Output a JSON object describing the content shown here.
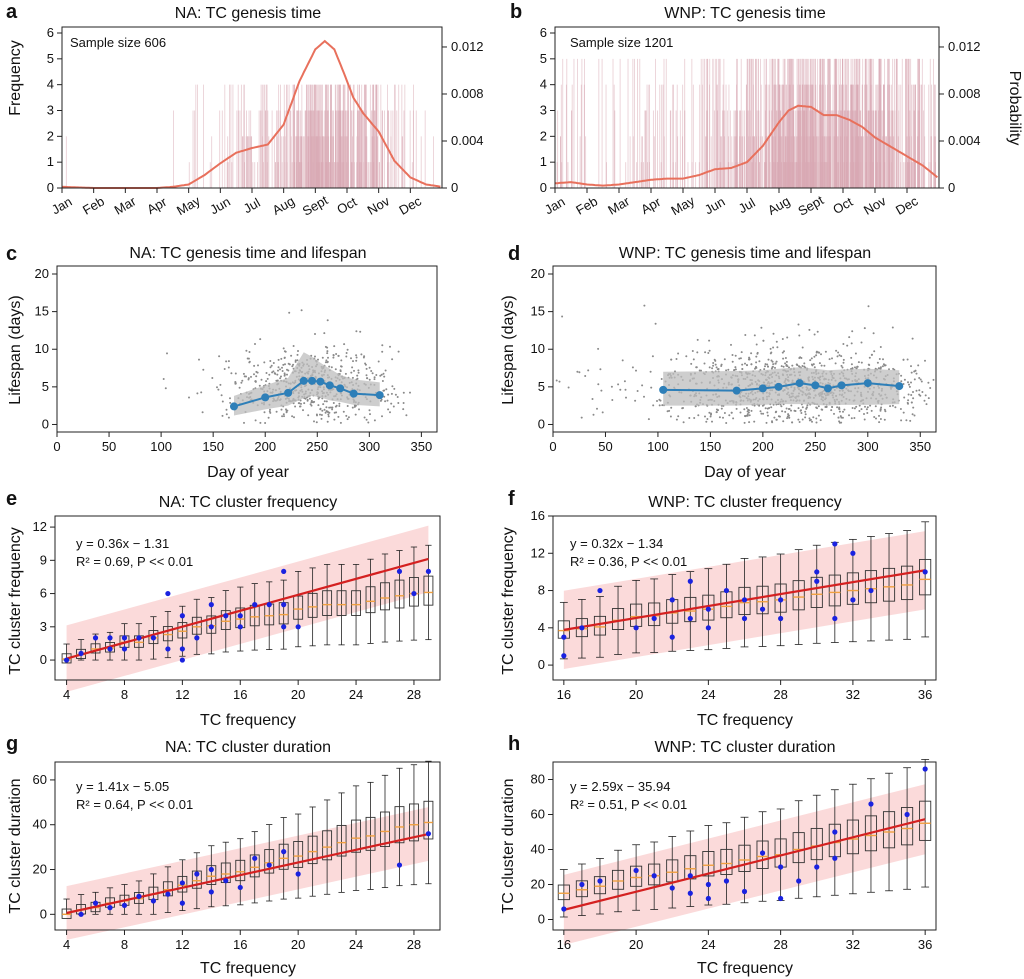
{
  "panels": {
    "a": {
      "label": "a",
      "title": "NA: TC genesis time",
      "ylabel": "Frequency",
      "note": "Sample size 606",
      "yticks": [
        "0",
        "1",
        "2",
        "3",
        "4",
        "5",
        "6"
      ],
      "y2ticks": [
        "0",
        "0.004",
        "0.008",
        "0.012"
      ],
      "xticks": [
        "Jan",
        "Feb",
        "Mar",
        "Apr",
        "May",
        "Jun",
        "Jul",
        "Aug",
        "Sept",
        "Oct",
        "Nov",
        "Dec"
      ]
    },
    "b": {
      "label": "b",
      "title": "WNP: TC genesis time",
      "ylabel2": "Probability",
      "note": "Sample size 1201",
      "yticks": [
        "0",
        "1",
        "2",
        "3",
        "4",
        "5",
        "6"
      ],
      "y2ticks": [
        "0",
        "0.004",
        "0.008",
        "0.012"
      ],
      "xticks": [
        "Jan",
        "Feb",
        "Mar",
        "Apr",
        "May",
        "Jun",
        "Jul",
        "Aug",
        "Sept",
        "Oct",
        "Nov",
        "Dec"
      ]
    },
    "c": {
      "label": "c",
      "title": "NA: TC genesis time and lifespan",
      "ylabel": "Lifespan (days)",
      "xlabel": "Day of year",
      "yticks": [
        "0",
        "5",
        "10",
        "15",
        "20"
      ],
      "xticks": [
        "0",
        "50",
        "100",
        "150",
        "200",
        "250",
        "300",
        "350"
      ]
    },
    "d": {
      "label": "d",
      "title": "WNP: TC genesis time and lifespan",
      "ylabel": "Lifespan (days)",
      "xlabel": "Day of year",
      "yticks": [
        "0",
        "5",
        "10",
        "15",
        "20"
      ],
      "xticks": [
        "0",
        "50",
        "100",
        "150",
        "200",
        "250",
        "300",
        "350"
      ]
    },
    "e": {
      "label": "e",
      "title": "NA: TC cluster frequency",
      "ylabel": "TC cluster frequency",
      "xlabel": "TC frequency",
      "yticks": [
        "0",
        "3",
        "6",
        "9",
        "12"
      ],
      "xticks": [
        "4",
        "8",
        "12",
        "16",
        "20",
        "24",
        "28"
      ],
      "eq": "y = 0.36x − 1.31",
      "stats": "R² = 0.69, P << 0.01"
    },
    "f": {
      "label": "f",
      "title": "WNP: TC cluster frequency",
      "ylabel": "TC cluster frequency",
      "xlabel": "TC frequency",
      "yticks": [
        "0",
        "4",
        "8",
        "12",
        "16"
      ],
      "xticks": [
        "16",
        "20",
        "24",
        "28",
        "32",
        "36"
      ],
      "eq": "y = 0.32x − 1.34",
      "stats": "R² = 0.36, P << 0.01"
    },
    "g": {
      "label": "g",
      "title": "NA: TC cluster duration",
      "ylabel": "TC cluster duration",
      "xlabel": "TC frequency",
      "yticks": [
        "0",
        "20",
        "40",
        "60"
      ],
      "xticks": [
        "4",
        "8",
        "12",
        "16",
        "20",
        "24",
        "28"
      ],
      "eq": "y = 1.41x − 5.05",
      "stats": "R² = 0.64, P << 0.01"
    },
    "h": {
      "label": "h",
      "title": "WNP: TC cluster duration",
      "ylabel": "TC cluster duration",
      "xlabel": "TC frequency",
      "yticks": [
        "0",
        "20",
        "40",
        "60",
        "80"
      ],
      "xticks": [
        "16",
        "20",
        "24",
        "28",
        "32",
        "36"
      ],
      "eq": "y = 2.59x − 35.94",
      "stats": "R² = 0.51, P << 0.01"
    }
  },
  "colors": {
    "kde": "#e8705c",
    "hist": "#d9a9b4",
    "scatter": "#8a8a8a",
    "band": "#bdbdbd",
    "mean": "#2e7fb8",
    "fit": "#d42020",
    "fitband": "#fbd6d6",
    "median": "#f0a040",
    "points": "#1a22e0"
  },
  "chart_data": [
    {
      "id": "a",
      "type": "area",
      "title": "NA: TC genesis time",
      "ylabel": "Frequency",
      "xrange_months": [
        0,
        12
      ],
      "ylim": [
        0,
        6
      ],
      "y2lim": [
        0,
        0.0137
      ],
      "kde_months": [
        0,
        1,
        2,
        3,
        3.5,
        4,
        4.5,
        5,
        5.5,
        6,
        6.5,
        7,
        7.5,
        8,
        8.3,
        8.6,
        8.9,
        9.2,
        9.5,
        10,
        10.5,
        11,
        11.5,
        12
      ],
      "kde_probability": [
        0.0001,
        0.0,
        0.0,
        0.0,
        0.0001,
        0.0003,
        0.0011,
        0.0021,
        0.003,
        0.0034,
        0.0037,
        0.0054,
        0.0091,
        0.0118,
        0.0125,
        0.0118,
        0.0098,
        0.0077,
        0.0064,
        0.0048,
        0.0023,
        0.0009,
        0.0003,
        0.0001
      ]
    },
    {
      "id": "b",
      "type": "area",
      "title": "WNP: TC genesis time",
      "ylabel": "Probability",
      "xrange_months": [
        0,
        12
      ],
      "ylim": [
        0,
        6
      ],
      "y2lim": [
        0,
        0.0137
      ],
      "kde_months": [
        0,
        0.5,
        1,
        1.5,
        2,
        2.5,
        3,
        3.5,
        4,
        4.5,
        5,
        5.5,
        6,
        6.5,
        7,
        7.3,
        7.6,
        8,
        8.4,
        8.8,
        9.2,
        9.6,
        10,
        10.5,
        11,
        11.5,
        12
      ],
      "kde_probability": [
        0.0004,
        0.0005,
        0.0003,
        0.0002,
        0.0003,
        0.0005,
        0.0007,
        0.0008,
        0.0008,
        0.0011,
        0.0016,
        0.0017,
        0.0022,
        0.0036,
        0.0056,
        0.0066,
        0.007,
        0.0069,
        0.0062,
        0.0062,
        0.0058,
        0.0052,
        0.0043,
        0.0035,
        0.0027,
        0.0019,
        0.0008
      ]
    },
    {
      "id": "c",
      "type": "scatter",
      "title": "NA: TC genesis time and lifespan",
      "xlabel": "Day of year",
      "ylabel": "Lifespan (days)",
      "xlim": [
        0,
        365
      ],
      "ylim": [
        -1,
        20
      ],
      "mean_x": [
        170,
        200,
        222,
        237,
        245,
        253,
        262,
        272,
        285,
        310
      ],
      "mean_y": [
        2.4,
        3.6,
        4.2,
        5.8,
        5.8,
        5.7,
        5.2,
        4.8,
        4.1,
        3.9
      ],
      "band_lower": [
        1.2,
        2.0,
        2.5,
        3.5,
        3.8,
        3.6,
        3.2,
        3.0,
        2.6,
        2.4
      ],
      "band_upper": [
        3.8,
        5.2,
        6.2,
        9.6,
        9.0,
        8.2,
        7.4,
        6.6,
        6.0,
        5.6
      ]
    },
    {
      "id": "d",
      "type": "scatter",
      "title": "WNP: TC genesis time and lifespan",
      "xlabel": "Day of year",
      "ylabel": "Lifespan (days)",
      "xlim": [
        0,
        365
      ],
      "ylim": [
        -1,
        20
      ],
      "mean_x": [
        105,
        175,
        200,
        215,
        235,
        250,
        262,
        275,
        300,
        330
      ],
      "mean_y": [
        4.6,
        4.5,
        4.8,
        5.0,
        5.5,
        5.2,
        4.8,
        5.2,
        5.5,
        5.1
      ],
      "band_lower": [
        2.5,
        2.5,
        2.6,
        2.7,
        2.7,
        2.6,
        2.5,
        2.6,
        2.6,
        2.7
      ],
      "band_upper": [
        7.0,
        7.1,
        7.2,
        7.4,
        7.6,
        7.4,
        7.2,
        7.3,
        7.4,
        7.2
      ]
    },
    {
      "id": "e",
      "type": "box",
      "title": "NA: TC cluster frequency",
      "xlabel": "TC frequency",
      "ylabel": "TC cluster frequency",
      "xlim": [
        3.2,
        29.8
      ],
      "ylim": [
        -1.8,
        13
      ],
      "fit": {
        "slope": 0.36,
        "intercept": -1.31,
        "band_halfwidth": 3
      },
      "x_start": 4,
      "medians": [
        0.1,
        0.5,
        1.0,
        1.1,
        1.6,
        1.6,
        2.0,
        2.3,
        2.6,
        3.0,
        3.1,
        3.5,
        3.7,
        3.9,
        4.0,
        4.1,
        4.6,
        4.8,
        5.0,
        5.0,
        5.0,
        5.3,
        5.6,
        5.8,
        6.0,
        6.1
      ],
      "extra_points": [
        [
          4,
          0
        ],
        [
          5,
          0.6
        ],
        [
          6,
          2
        ],
        [
          7,
          2
        ],
        [
          7,
          1
        ],
        [
          8,
          1
        ],
        [
          8,
          2
        ],
        [
          9,
          2
        ],
        [
          10,
          2
        ],
        [
          11,
          6
        ],
        [
          11,
          1
        ],
        [
          12,
          4
        ],
        [
          12,
          0
        ],
        [
          12,
          1
        ],
        [
          13,
          2
        ],
        [
          14,
          5
        ],
        [
          14,
          3
        ],
        [
          15,
          4
        ],
        [
          16,
          4
        ],
        [
          16,
          3
        ],
        [
          17,
          5
        ],
        [
          18,
          5
        ],
        [
          19,
          8
        ],
        [
          19,
          3
        ],
        [
          19,
          5
        ],
        [
          20,
          3
        ],
        [
          27,
          8
        ],
        [
          28,
          6
        ],
        [
          29,
          8
        ]
      ]
    },
    {
      "id": "f",
      "type": "box",
      "title": "WNP: TC cluster frequency",
      "xlabel": "TC frequency",
      "ylabel": "TC cluster frequency",
      "xlim": [
        15.4,
        36.6
      ],
      "ylim": [
        -1.6,
        16
      ],
      "fit": {
        "slope": 0.32,
        "intercept": -1.34,
        "band_halfwidth": 4.2
      },
      "x_start": 16,
      "medians": [
        3.7,
        3.9,
        4.1,
        4.8,
        5.2,
        5.3,
        5.6,
        5.8,
        6.0,
        6.3,
        6.7,
        6.8,
        7.0,
        7.3,
        7.6,
        7.8,
        8.0,
        8.2,
        8.4,
        8.6,
        9.2
      ],
      "extra_points": [
        [
          16,
          1
        ],
        [
          16,
          3
        ],
        [
          17,
          4
        ],
        [
          18,
          8
        ],
        [
          20,
          4
        ],
        [
          21,
          5
        ],
        [
          22,
          3
        ],
        [
          22,
          7
        ],
        [
          23,
          9
        ],
        [
          23,
          5
        ],
        [
          24,
          4
        ],
        [
          24,
          6
        ],
        [
          25,
          8
        ],
        [
          26,
          5
        ],
        [
          26,
          7
        ],
        [
          27,
          6
        ],
        [
          28,
          5
        ],
        [
          28,
          7
        ],
        [
          30,
          10
        ],
        [
          30,
          9
        ],
        [
          31,
          5
        ],
        [
          31,
          13
        ],
        [
          32,
          7
        ],
        [
          32,
          12
        ],
        [
          33,
          8
        ],
        [
          36,
          10
        ]
      ]
    },
    {
      "id": "g",
      "type": "box",
      "title": "NA: TC cluster duration",
      "xlabel": "TC frequency",
      "ylabel": "TC cluster duration",
      "xlim": [
        3.2,
        29.8
      ],
      "ylim": [
        -7,
        68
      ],
      "fit": {
        "slope": 1.41,
        "intercept": -5.05,
        "band_halfwidth": 12
      },
      "x_start": 4,
      "medians": [
        0,
        2,
        3,
        5,
        6,
        7,
        9,
        11,
        13,
        15,
        17,
        18,
        19,
        21,
        23,
        25,
        26,
        28,
        30,
        32,
        34,
        35,
        37,
        39,
        40,
        41
      ],
      "extra_points": [
        [
          5,
          0
        ],
        [
          6,
          5
        ],
        [
          7,
          3
        ],
        [
          8,
          4
        ],
        [
          9,
          8
        ],
        [
          10,
          6
        ],
        [
          11,
          9
        ],
        [
          12,
          5
        ],
        [
          12,
          14
        ],
        [
          13,
          18
        ],
        [
          14,
          20
        ],
        [
          14,
          10
        ],
        [
          15,
          15
        ],
        [
          16,
          12
        ],
        [
          17,
          25
        ],
        [
          18,
          22
        ],
        [
          19,
          28
        ],
        [
          20,
          18
        ],
        [
          27,
          22
        ],
        [
          29,
          36
        ]
      ]
    },
    {
      "id": "h",
      "type": "box",
      "title": "WNP: TC cluster duration",
      "xlabel": "TC frequency",
      "ylabel": "TC cluster duration",
      "xlim": [
        15.4,
        36.6
      ],
      "ylim": [
        -6,
        90
      ],
      "fit": {
        "slope": 2.59,
        "intercept": -35.94,
        "band_halfwidth": 20
      },
      "x_start": 16,
      "medians": [
        15,
        17,
        19,
        22,
        24,
        25,
        27,
        29,
        31,
        32,
        34,
        36,
        37,
        40,
        42,
        44,
        46,
        48,
        50,
        52,
        55
      ],
      "extra_points": [
        [
          16,
          6
        ],
        [
          17,
          20
        ],
        [
          18,
          22
        ],
        [
          20,
          28
        ],
        [
          21,
          25
        ],
        [
          22,
          18
        ],
        [
          23,
          15
        ],
        [
          23,
          25
        ],
        [
          24,
          12
        ],
        [
          24,
          20
        ],
        [
          25,
          22
        ],
        [
          26,
          16
        ],
        [
          27,
          38
        ],
        [
          28,
          12
        ],
        [
          28,
          30
        ],
        [
          29,
          22
        ],
        [
          30,
          30
        ],
        [
          31,
          35
        ],
        [
          31,
          50
        ],
        [
          33,
          66
        ],
        [
          35,
          60
        ],
        [
          36,
          86
        ]
      ]
    }
  ]
}
